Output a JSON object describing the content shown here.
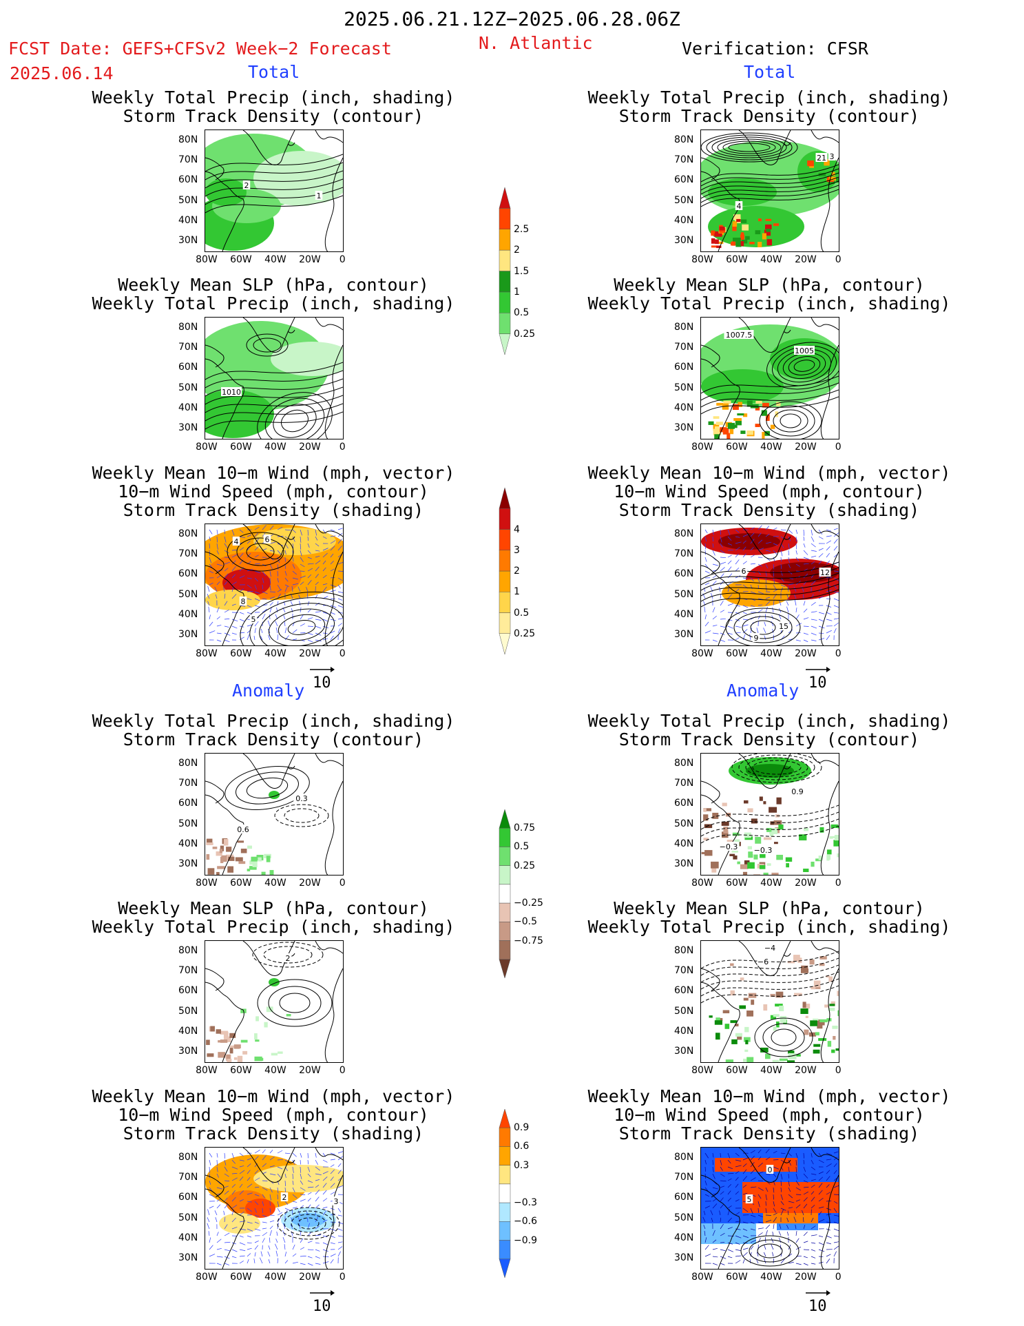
{
  "header": {
    "date_range": "2025.06.21.12Z−2025.06.28.06Z",
    "fcst_label": "FCST Date: GEFS+CFSv2 Week−2 Forecast",
    "fcst_date": "2025.06.14",
    "region": "N. Atlantic",
    "verification": "Verification: CFSR"
  },
  "sections": {
    "total": "Total",
    "anomaly": "Anomaly"
  },
  "ref_vector": "10",
  "colorbars": {
    "precip_total": {
      "colors": [
        "#c8f5c8",
        "#6fe06f",
        "#33c733",
        "#1a991a",
        "#ffe680",
        "#ffa500",
        "#ff4500",
        "#d01010"
      ],
      "labels": [
        "0.25",
        "0.5",
        "1",
        "1.5",
        "2",
        "2.5"
      ]
    },
    "storm_total": {
      "colors": [
        "#fffbd0",
        "#ffec9a",
        "#ffd54a",
        "#ffa500",
        "#ff7a00",
        "#ff4500",
        "#d01010",
        "#8b0000"
      ],
      "labels": [
        "0.25",
        "0.5",
        "1",
        "2",
        "3",
        "4"
      ]
    },
    "precip_anom": {
      "colors": [
        "#0b8b0b",
        "#33c733",
        "#6fe06f",
        "#c8f5c8",
        "#ffffff",
        "#e8c4b4",
        "#c89a86",
        "#a0705a",
        "#6b3a2a"
      ],
      "labels": [
        "0.75",
        "0.5",
        "0.25",
        "−0.25",
        "−0.5",
        "−0.75"
      ]
    },
    "storm_anom": {
      "colors": [
        "#ff4500",
        "#ff7a00",
        "#ffa500",
        "#ffe680",
        "#ffffff",
        "#b0e8ff",
        "#6ec0ff",
        "#3a8cff",
        "#1a5cff"
      ],
      "labels": [
        "0.9",
        "0.6",
        "0.3",
        "−0.3",
        "−0.6",
        "−0.9"
      ]
    }
  },
  "map_axes": {
    "lat_ticks": [
      "80N",
      "70N",
      "60N",
      "50N",
      "40N",
      "30N"
    ],
    "lon_ticks": [
      "80W",
      "60W",
      "40W",
      "20W",
      "0"
    ],
    "lat_range": [
      25,
      85
    ],
    "lon_range": [
      -80,
      0
    ]
  },
  "panels": [
    {
      "col": "left",
      "row": 1,
      "title": "Weekly Total Precip (inch, shading)\nStorm Track Density (contour)",
      "kind": "precip_total",
      "labels": [
        "2",
        "1"
      ]
    },
    {
      "col": "right",
      "row": 1,
      "title": "Weekly Total Precip (inch, shading)\nStorm Track Density (contour)",
      "kind": "precip_total_v",
      "labels": [
        "21",
        "3",
        "4"
      ]
    },
    {
      "col": "left",
      "row": 2,
      "title": "Weekly Mean SLP (hPa, contour)\nWeekly Total Precip (inch, shading)",
      "kind": "slp_total",
      "labels": [
        "1010"
      ]
    },
    {
      "col": "right",
      "row": 2,
      "title": "Weekly Mean SLP (hPa, contour)\nWeekly Total Precip (inch, shading)",
      "kind": "slp_total_v",
      "labels": [
        "1007.5",
        "1005"
      ]
    },
    {
      "col": "left",
      "row": 3,
      "title": "Weekly Mean 10−m Wind (mph, vector)\n10−m Wind Speed (mph, contour)\nStorm Track Density (shading)",
      "kind": "wind_total",
      "labels": [
        "4",
        "6",
        "8",
        "5"
      ]
    },
    {
      "col": "right",
      "row": 3,
      "title": "Weekly Mean 10−m Wind (mph, vector)\n10−m Wind Speed (mph, contour)\nStorm Track Density (shading)",
      "kind": "wind_total_v",
      "labels": [
        "6",
        "12",
        "15",
        "9"
      ]
    },
    {
      "col": "left",
      "row": 4,
      "title": "Weekly Total Precip (inch, shading)\nStorm Track Density (contour)",
      "kind": "precip_anom",
      "labels": [
        "0.3",
        "0.6"
      ]
    },
    {
      "col": "right",
      "row": 4,
      "title": "Weekly Total Precip (inch, shading)\nStorm Track Density (contour)",
      "kind": "precip_anom_v",
      "labels": [
        "0.9",
        "−0.3",
        "−0.3"
      ]
    },
    {
      "col": "left",
      "row": 5,
      "title": "Weekly Mean SLP (hPa, contour)\nWeekly Total Precip (inch, shading)",
      "kind": "slp_anom",
      "labels": [
        "2"
      ]
    },
    {
      "col": "right",
      "row": 5,
      "title": "Weekly Mean SLP (hPa, contour)\nWeekly Total Precip (inch, shading)",
      "kind": "slp_anom_v",
      "labels": [
        "−4",
        "−6"
      ]
    },
    {
      "col": "left",
      "row": 6,
      "title": "Weekly Mean 10−m Wind (mph, vector)\n10−m Wind Speed (mph, contour)\nStorm Track Density (shading)",
      "kind": "wind_anom",
      "labels": [
        "2",
        "3"
      ]
    },
    {
      "col": "right",
      "row": 6,
      "title": "Weekly Mean 10−m Wind (mph, vector)\n10−m Wind Speed (mph, contour)\nStorm Track Density (shading)",
      "kind": "wind_anom_v",
      "labels": [
        "0",
        "5"
      ]
    }
  ],
  "chart_data": [
    {
      "type": "heatmap",
      "title": "Weekly Total Precip (inch, shading) / Storm Track Density (contour)",
      "section": "Total",
      "source": "GEFS+CFSv2",
      "levels": [
        0.25,
        0.5,
        1,
        1.5,
        2,
        2.5
      ]
    },
    {
      "type": "heatmap",
      "title": "Weekly Total Precip (inch, shading) / Storm Track Density (contour)",
      "section": "Total",
      "source": "CFSR",
      "levels": [
        0.25,
        0.5,
        1,
        1.5,
        2,
        2.5
      ]
    },
    {
      "type": "heatmap",
      "title": "Weekly Mean SLP (hPa, contour) / Weekly Total Precip (inch, shading)",
      "section": "Total",
      "source": "GEFS+CFSv2",
      "contour_labels": [
        1010
      ]
    },
    {
      "type": "heatmap",
      "title": "Weekly Mean SLP (hPa, contour) / Weekly Total Precip (inch, shading)",
      "section": "Total",
      "source": "CFSR",
      "contour_labels": [
        1007.5,
        1005
      ]
    },
    {
      "type": "heatmap",
      "title": "Weekly Mean 10−m Wind / 10−m Wind Speed / Storm Track Density",
      "section": "Total",
      "source": "GEFS+CFSv2",
      "levels": [
        0.25,
        0.5,
        1,
        2,
        3,
        4
      ]
    },
    {
      "type": "heatmap",
      "title": "Weekly Mean 10−m Wind / 10−m Wind Speed / Storm Track Density",
      "section": "Total",
      "source": "CFSR",
      "levels": [
        0.25,
        0.5,
        1,
        2,
        3,
        4
      ]
    },
    {
      "type": "heatmap",
      "title": "Weekly Total Precip / Storm Track Density",
      "section": "Anomaly",
      "source": "GEFS+CFSv2",
      "levels": [
        -0.75,
        -0.5,
        -0.25,
        0.25,
        0.5,
        0.75
      ]
    },
    {
      "type": "heatmap",
      "title": "Weekly Total Precip / Storm Track Density",
      "section": "Anomaly",
      "source": "CFSR",
      "levels": [
        -0.75,
        -0.5,
        -0.25,
        0.25,
        0.5,
        0.75
      ]
    },
    {
      "type": "heatmap",
      "title": "Weekly Mean SLP / Weekly Total Precip",
      "section": "Anomaly",
      "source": "GEFS+CFSv2"
    },
    {
      "type": "heatmap",
      "title": "Weekly Mean SLP / Weekly Total Precip",
      "section": "Anomaly",
      "source": "CFSR"
    },
    {
      "type": "heatmap",
      "title": "Weekly Mean 10−m Wind / 10−m Wind Speed / Storm Track Density",
      "section": "Anomaly",
      "source": "GEFS+CFSv2",
      "levels": [
        -0.9,
        -0.6,
        -0.3,
        0.3,
        0.6,
        0.9
      ]
    },
    {
      "type": "heatmap",
      "title": "Weekly Mean 10−m Wind / 10−m Wind Speed / Storm Track Density",
      "section": "Anomaly",
      "source": "CFSR",
      "levels": [
        -0.9,
        -0.6,
        -0.3,
        0.3,
        0.6,
        0.9
      ]
    }
  ]
}
